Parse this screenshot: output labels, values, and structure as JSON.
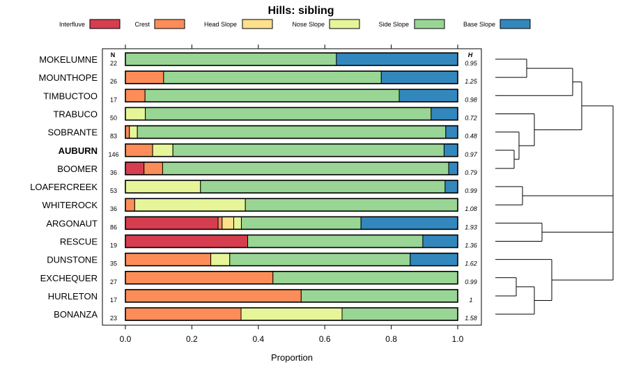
{
  "chart_data": {
    "type": "bar",
    "subtype": "stacked-horizontal-proportion",
    "title": "Hills: sibling",
    "xlabel": "Proportion",
    "ylabel": "",
    "xlim": [
      0,
      1
    ],
    "x_ticks": [
      "0.0",
      "0.2",
      "0.4",
      "0.6",
      "0.8",
      "1.0"
    ],
    "n_header": "N",
    "h_header": "H",
    "legend_position": "top",
    "legend": [
      {
        "name": "Interfluve",
        "color": "#d53e4f"
      },
      {
        "name": "Crest",
        "color": "#fc8d59"
      },
      {
        "name": "Head Slope",
        "color": "#fee08b"
      },
      {
        "name": "Nose Slope",
        "color": "#e6f598"
      },
      {
        "name": "Side Slope",
        "color": "#99d594"
      },
      {
        "name": "Base Slope",
        "color": "#3288bd"
      }
    ],
    "rows": [
      {
        "name": "MOKELUMNE",
        "n": "22",
        "h": "0.95",
        "bold": false,
        "values": [
          0,
          0,
          0,
          0,
          0.635,
          0.365
        ]
      },
      {
        "name": "MOUNTHOPE",
        "n": "26",
        "h": "1.25",
        "bold": false,
        "values": [
          0,
          0.115,
          0,
          0,
          0.655,
          0.23
        ]
      },
      {
        "name": "TIMBUCTOO",
        "n": "17",
        "h": "0.98",
        "bold": false,
        "values": [
          0,
          0.059,
          0,
          0,
          0.765,
          0.176
        ]
      },
      {
        "name": "TRABUCO",
        "n": "50",
        "h": "0.72",
        "bold": false,
        "values": [
          0,
          0,
          0,
          0.06,
          0.86,
          0.08
        ]
      },
      {
        "name": "SOBRANTE",
        "n": "83",
        "h": "0.48",
        "bold": false,
        "values": [
          0,
          0.012,
          0,
          0.024,
          0.928,
          0.036
        ]
      },
      {
        "name": "AUBURN",
        "n": "146",
        "h": "0.97",
        "bold": true,
        "values": [
          0,
          0.082,
          0,
          0.061,
          0.816,
          0.041
        ]
      },
      {
        "name": "BOOMER",
        "n": "36",
        "h": "0.79",
        "bold": false,
        "values": [
          0.056,
          0.056,
          0,
          0,
          0.861,
          0.027
        ]
      },
      {
        "name": "LOAFERCREEK",
        "n": "53",
        "h": "0.99",
        "bold": false,
        "values": [
          0,
          0,
          0,
          0.226,
          0.736,
          0.038
        ]
      },
      {
        "name": "WHITEROCK",
        "n": "36",
        "h": "1.08",
        "bold": false,
        "values": [
          0,
          0.028,
          0,
          0.333,
          0.639,
          0
        ]
      },
      {
        "name": "ARGONAUT",
        "n": "86",
        "h": "1.93",
        "bold": false,
        "values": [
          0.279,
          0.012,
          0.035,
          0.023,
          0.36,
          0.291
        ]
      },
      {
        "name": "RESCUE",
        "n": "19",
        "h": "1.36",
        "bold": false,
        "values": [
          0.368,
          0,
          0,
          0,
          0.527,
          0.105
        ]
      },
      {
        "name": "DUNSTONE",
        "n": "35",
        "h": "1.62",
        "bold": false,
        "values": [
          0,
          0.257,
          0,
          0.057,
          0.543,
          0.143
        ]
      },
      {
        "name": "EXCHEQUER",
        "n": "27",
        "h": "0.99",
        "bold": false,
        "values": [
          0,
          0.444,
          0,
          0,
          0.556,
          0
        ]
      },
      {
        "name": "HURLETON",
        "n": "17",
        "h": "1",
        "bold": false,
        "values": [
          0,
          0.529,
          0,
          0,
          0.471,
          0
        ]
      },
      {
        "name": "BONANZA",
        "n": "23",
        "h": "1.58",
        "bold": false,
        "values": [
          0,
          0.348,
          0,
          0.304,
          0.348,
          0
        ]
      }
    ]
  }
}
